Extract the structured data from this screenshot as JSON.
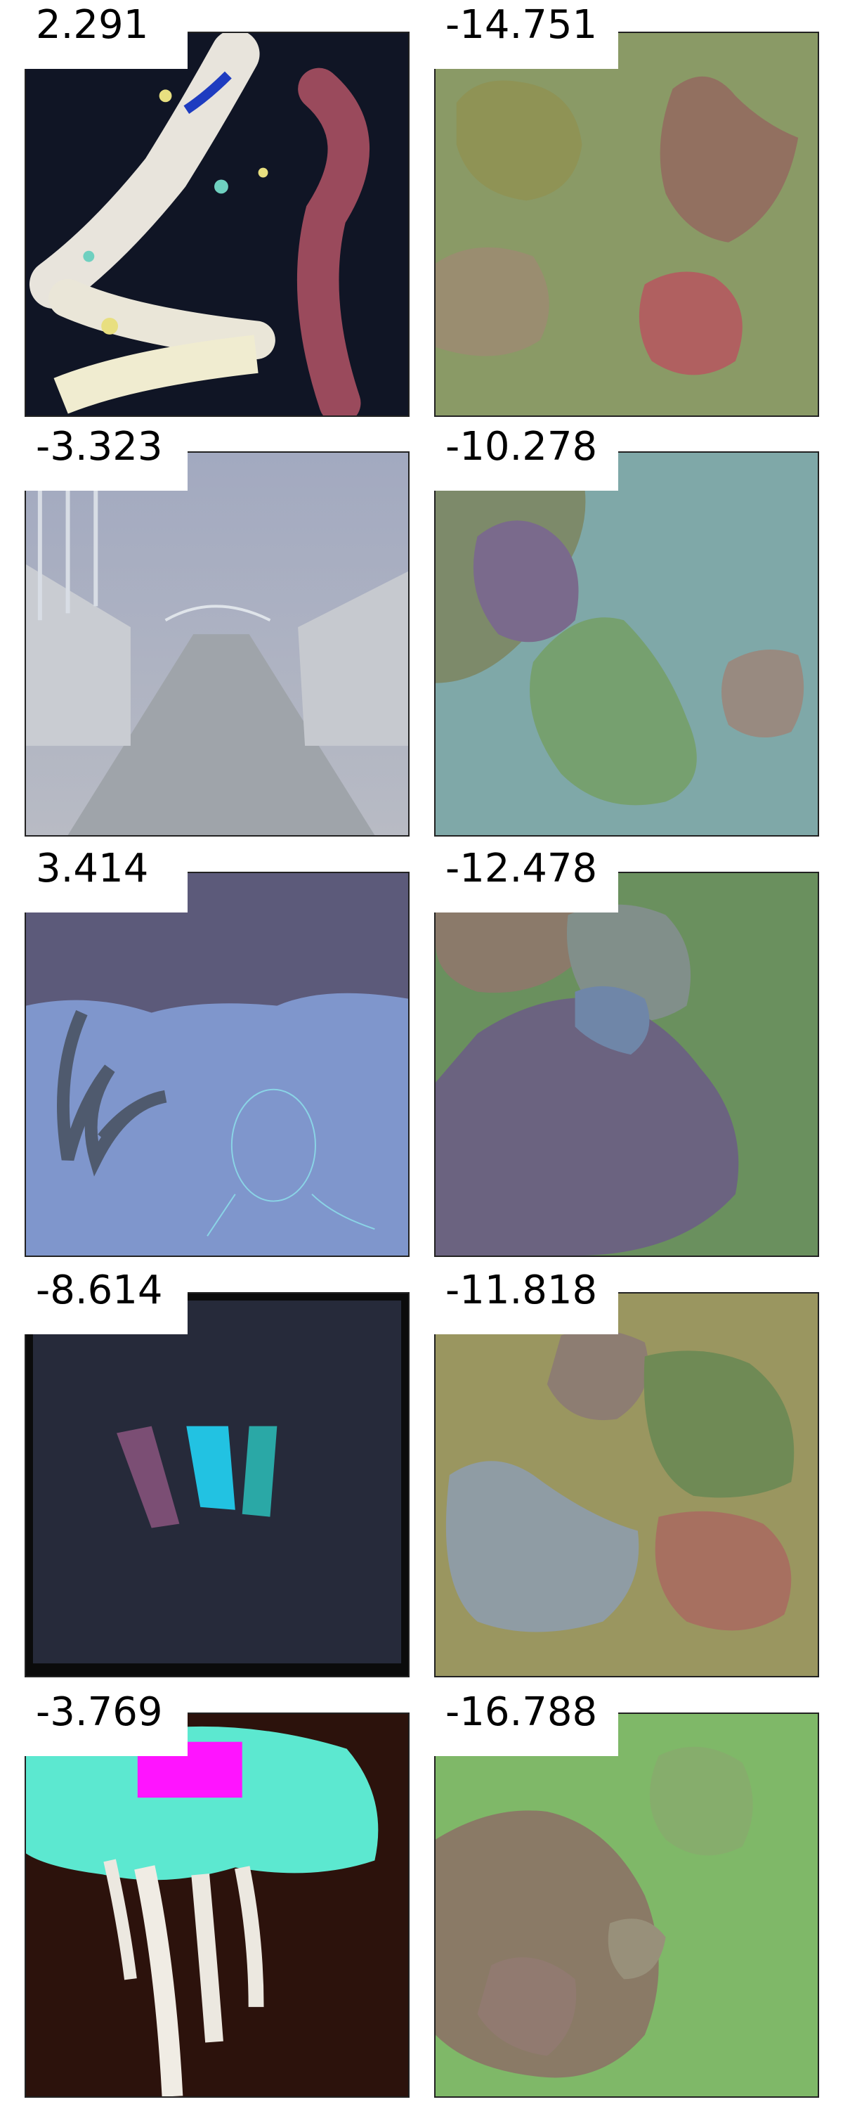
{
  "rows": [
    {
      "left_score": "2.291",
      "right_score": "-14.751"
    },
    {
      "left_score": "-3.323",
      "right_score": "-10.278"
    },
    {
      "left_score": "3.414",
      "right_score": "-12.478"
    },
    {
      "left_score": "-8.614",
      "right_score": "-11.818"
    },
    {
      "left_score": "-3.769",
      "right_score": "-16.788"
    }
  ]
}
